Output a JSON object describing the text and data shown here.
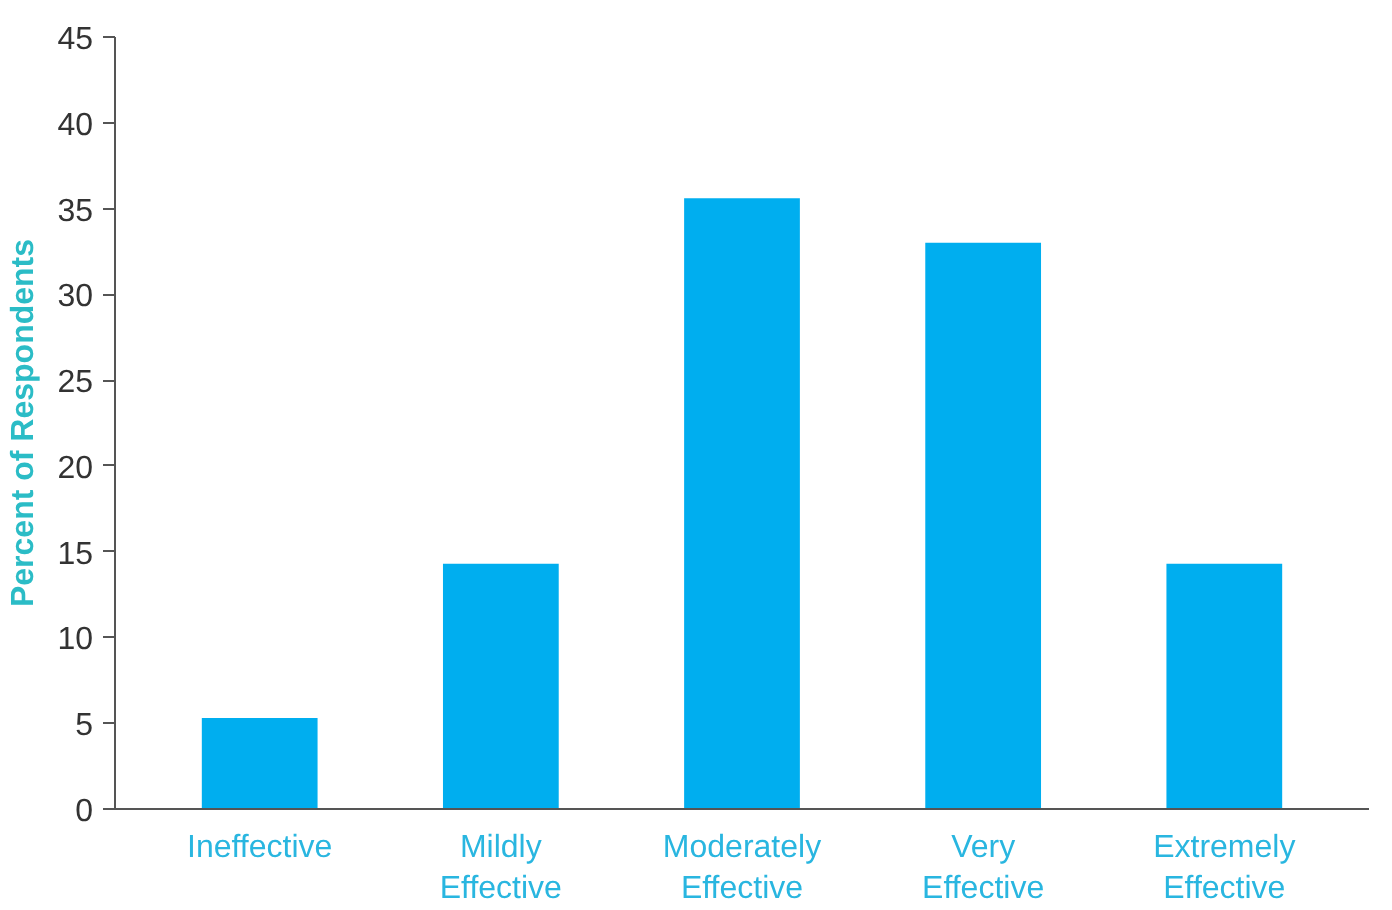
{
  "chart_data": {
    "type": "bar",
    "ylabel": "Percent of Respondents",
    "categories": [
      "Ineffective",
      "Mildly Effective",
      "Moderately Effective",
      "Very Effective",
      "Extremely Effective"
    ],
    "values": [
      5.3,
      14.3,
      35.6,
      33.0,
      14.3
    ],
    "color": "#00aeef",
    "ylim": [
      0,
      45
    ],
    "yticks": [
      0,
      5,
      10,
      15,
      20,
      25,
      30,
      35,
      40,
      45
    ],
    "grid": false
  }
}
